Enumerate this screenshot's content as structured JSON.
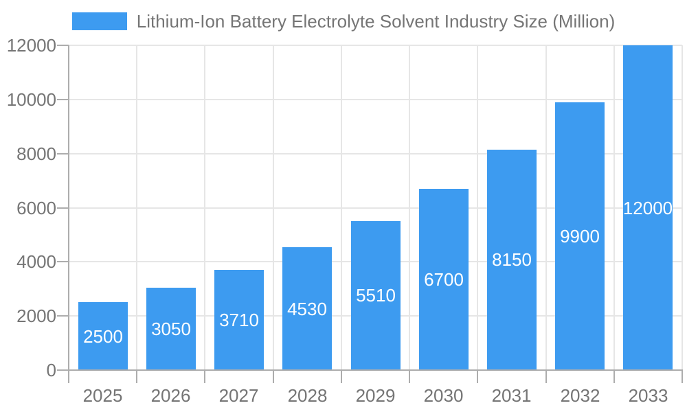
{
  "chart_data": {
    "type": "bar",
    "title": "Lithium-Ion Battery Electrolyte Solvent Industry Size (Million)",
    "categories": [
      "2025",
      "2026",
      "2027",
      "2028",
      "2029",
      "2030",
      "2031",
      "2032",
      "2033"
    ],
    "values": [
      2500,
      3050,
      3710,
      4530,
      5510,
      6700,
      8150,
      9900,
      12000
    ],
    "xlabel": "",
    "ylabel": "",
    "ylim": [
      0,
      12000
    ],
    "yticks": [
      0,
      2000,
      4000,
      6000,
      8000,
      10000,
      12000
    ],
    "grid": true,
    "legend_position": "top-center",
    "value_labels": "inside-center-white",
    "colors": {
      "bar": "#3D9BF0",
      "bar_value_label": "#ffffff",
      "axis_text": "#757575",
      "legend_text": "#757575",
      "gridline": "#e6e6e6",
      "axis_line": "#adadad",
      "background": "#ffffff"
    }
  }
}
